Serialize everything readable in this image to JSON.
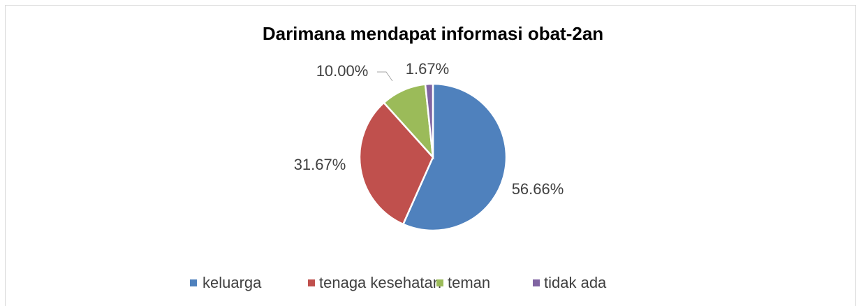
{
  "chart_data": {
    "type": "pie",
    "title": "Darimana mendapat informasi obat-2an",
    "categories": [
      "keluarga",
      "tenaga kesehatan",
      "teman",
      "tidak ada"
    ],
    "values": [
      56.66,
      31.67,
      10.0,
      1.67
    ],
    "value_labels": [
      "56.66%",
      "31.67%",
      "10.00%",
      "1.67%"
    ],
    "colors": [
      "#4f81bd",
      "#c0504d",
      "#9bbb59",
      "#8064a2"
    ],
    "legend": "bottom"
  }
}
